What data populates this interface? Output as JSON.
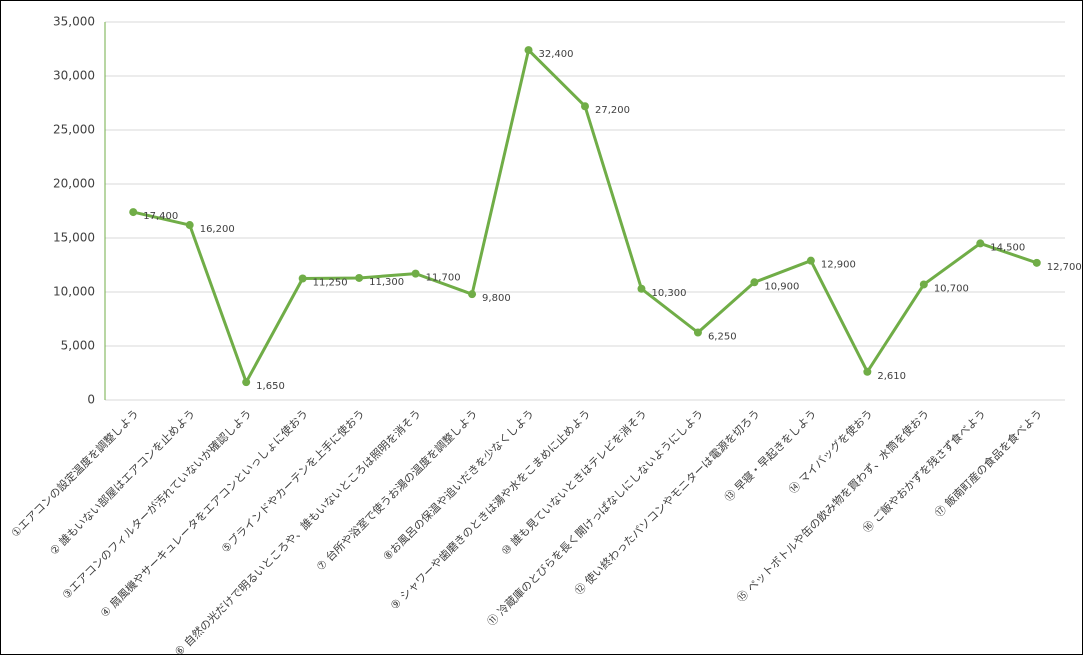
{
  "chart_data": {
    "type": "line",
    "categories": [
      "①エアコンの設定温度を調整しよう",
      "② 誰もいない部屋はエアコンを止めよう",
      "③エアコンのフィルターが汚れていないか確認しよう",
      "④ 扇風機やサーキュレータをエアコンといっしょに使おう",
      "⑤ブラインドやカーテンを上手に使おう",
      "⑥ 自然の光だけで明るいところや、誰もいないところは照明を消そう",
      "⑦ 台所や浴室で使うお湯の温度を調整しよう",
      "⑧お風呂の保温や追いだきを少なくしよう",
      "⑨ シャワーや歯磨きのときは湯や水をこまめに止めよう",
      "⑩ 誰も見ていないときはテレビを消そう",
      "⑪ 冷蔵庫のとびらを長く開けっぱなしにしないようにしよう",
      "⑫ 使い終わったパソコンやモニターは電源を切ろう",
      "⑬ 早寝・早起きをしよう",
      "⑭ マイバッグを使おう",
      "⑮ ペットボトルや缶の飲み物を買わず、水筒を使おう",
      "⑯ ご飯やおかずを残さず食べよう",
      "⑰ 飯南町産の食品を食べよう"
    ],
    "values": [
      17400,
      16200,
      1650,
      11250,
      11300,
      11700,
      9800,
      32400,
      27200,
      10300,
      6250,
      10900,
      12900,
      2610,
      10700,
      14500,
      12700
    ],
    "value_labels": [
      "17,400",
      "16,200",
      "1,650",
      "11,250",
      "11,300",
      "11,700",
      "9,800",
      "32,400",
      "27,200",
      "10,300",
      "6,250",
      "10,900",
      "12,900",
      "2,610",
      "10,700",
      "14,500",
      "12,700"
    ],
    "color": "#70ad47",
    "ylim": [
      0,
      35000
    ],
    "yticks": [
      0,
      {
        "value": 5000,
        "label": "5,000"
      },
      {
        "value": 10000,
        "label": "10,000"
      },
      {
        "value": 15000,
        "label": "15,000"
      },
      {
        "value": 20000,
        "label": "20,000"
      },
      {
        "value": 25000,
        "label": "25,000"
      },
      {
        "value": 30000,
        "label": "30,000"
      },
      {
        "value": 35000,
        "label": "35,000"
      }
    ],
    "grid": true
  }
}
